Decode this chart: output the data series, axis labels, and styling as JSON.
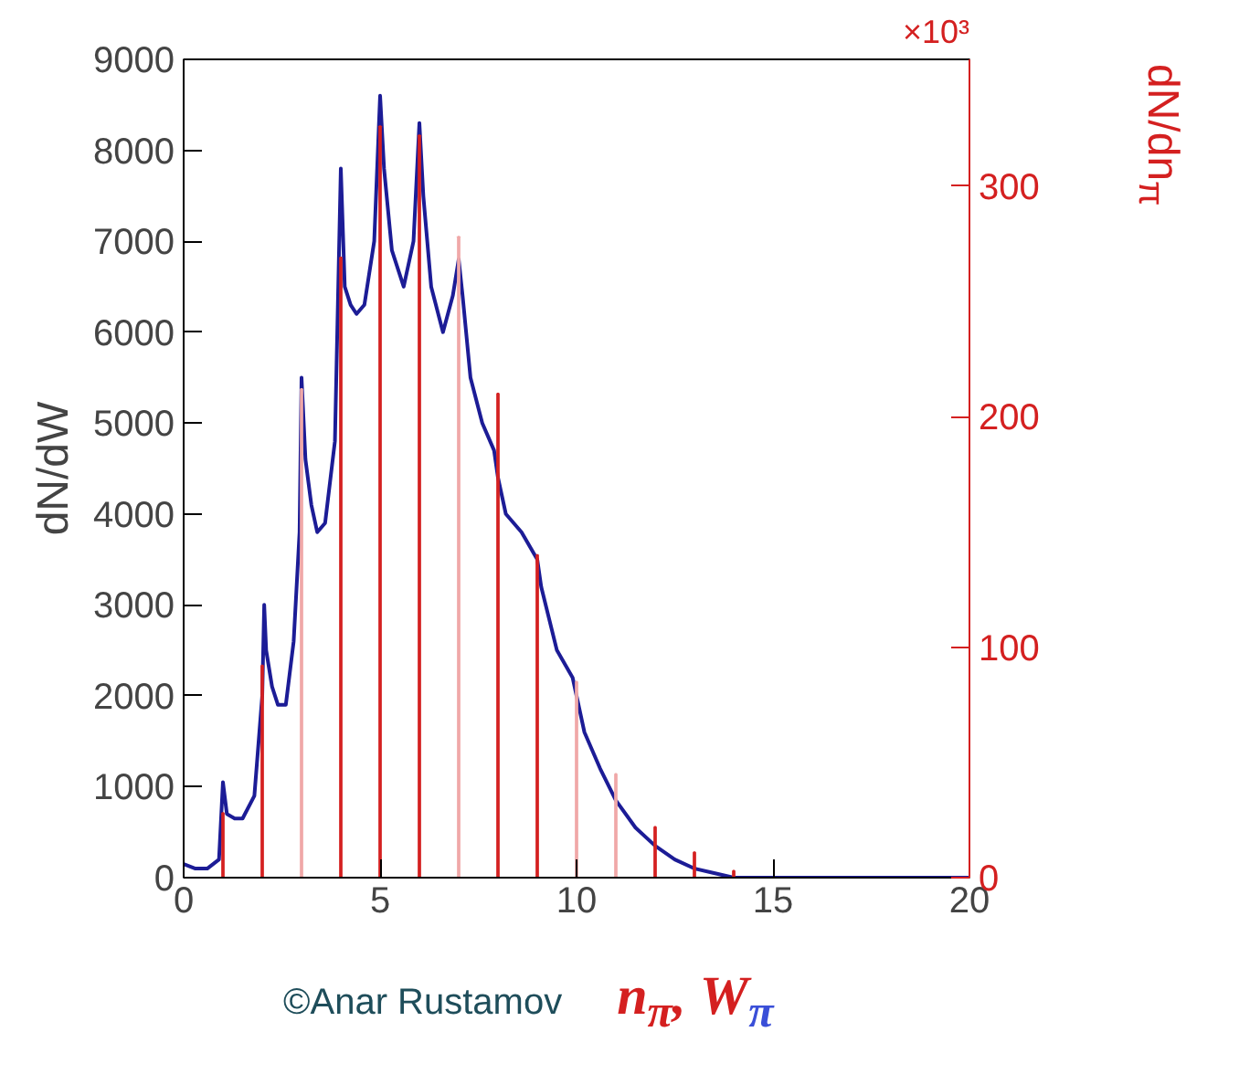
{
  "chart_data": {
    "type": "line",
    "xlabel": "n$_{π}$, W$_{π}$",
    "ylabel": "dN/dW",
    "y2label": "dN/dn$_{π}$",
    "xlim": [
      0,
      20
    ],
    "xticks": [
      0,
      5,
      10,
      15,
      20
    ],
    "ylim": [
      0,
      9000
    ],
    "yticks": [
      0,
      1000,
      2000,
      3000,
      4000,
      5000,
      6000,
      7000,
      8000,
      9000
    ],
    "y2lim": [
      0,
      355
    ],
    "y2ticks": [
      0,
      100,
      200,
      300
    ],
    "grid": false,
    "marker": "none",
    "line_style": "solid",
    "annotations": [
      "×10³",
      "©Anar Rustamov"
    ],
    "series": [
      {
        "color": "#1c1c96",
        "x": [
          0,
          0.3,
          0.6,
          0.9,
          1.0,
          1.1,
          1.3,
          1.5,
          1.8,
          2.0,
          2.05,
          2.1,
          2.25,
          2.4,
          2.6,
          2.8,
          2.95,
          3.0,
          3.1,
          3.25,
          3.4,
          3.6,
          3.85,
          4.0,
          4.1,
          4.25,
          4.4,
          4.6,
          4.85,
          5.0,
          5.1,
          5.3,
          5.6,
          5.85,
          6.0,
          6.1,
          6.3,
          6.6,
          6.85,
          7.0,
          7.1,
          7.3,
          7.6,
          7.9,
          8.0,
          8.2,
          8.6,
          9.0,
          9.1,
          9.5,
          9.9,
          10.2,
          10.6,
          11.0,
          11.5,
          12.0,
          12.5,
          13.0,
          13.5,
          14.0,
          15.0,
          16.0,
          18.0,
          20.0
        ],
        "values": [
          150,
          100,
          100,
          200,
          1050,
          700,
          650,
          650,
          900,
          2000,
          3000,
          2500,
          2100,
          1900,
          1900,
          2600,
          3800,
          5500,
          4600,
          4100,
          3800,
          3900,
          4800,
          7800,
          6500,
          6300,
          6200,
          6300,
          7000,
          8600,
          7800,
          6900,
          6500,
          7000,
          8300,
          7500,
          6500,
          6000,
          6400,
          6800,
          6400,
          5500,
          5000,
          4700,
          4400,
          4000,
          3800,
          3500,
          3200,
          2500,
          2200,
          1600,
          1200,
          850,
          550,
          350,
          200,
          100,
          50,
          0,
          0,
          0,
          0,
          0
        ]
      },
      {
        "type": "bar",
        "axis": "y2",
        "x": [
          1,
          2,
          3,
          4,
          5,
          6,
          7,
          8,
          9,
          10,
          11,
          12,
          13,
          14
        ],
        "values": [
          28,
          92,
          212,
          269,
          326,
          322,
          278,
          210,
          140,
          85,
          45,
          22,
          11,
          3
        ],
        "colors": [
          "#d42020",
          "#d42020",
          "#f0a8a8",
          "#d42020",
          "#d42020",
          "#d42020",
          "#f0a8a8",
          "#d42020",
          "#d42020",
          "#f0a8a8",
          "#f0a8a8",
          "#d42020",
          "#d42020",
          "#d42020"
        ]
      }
    ]
  }
}
